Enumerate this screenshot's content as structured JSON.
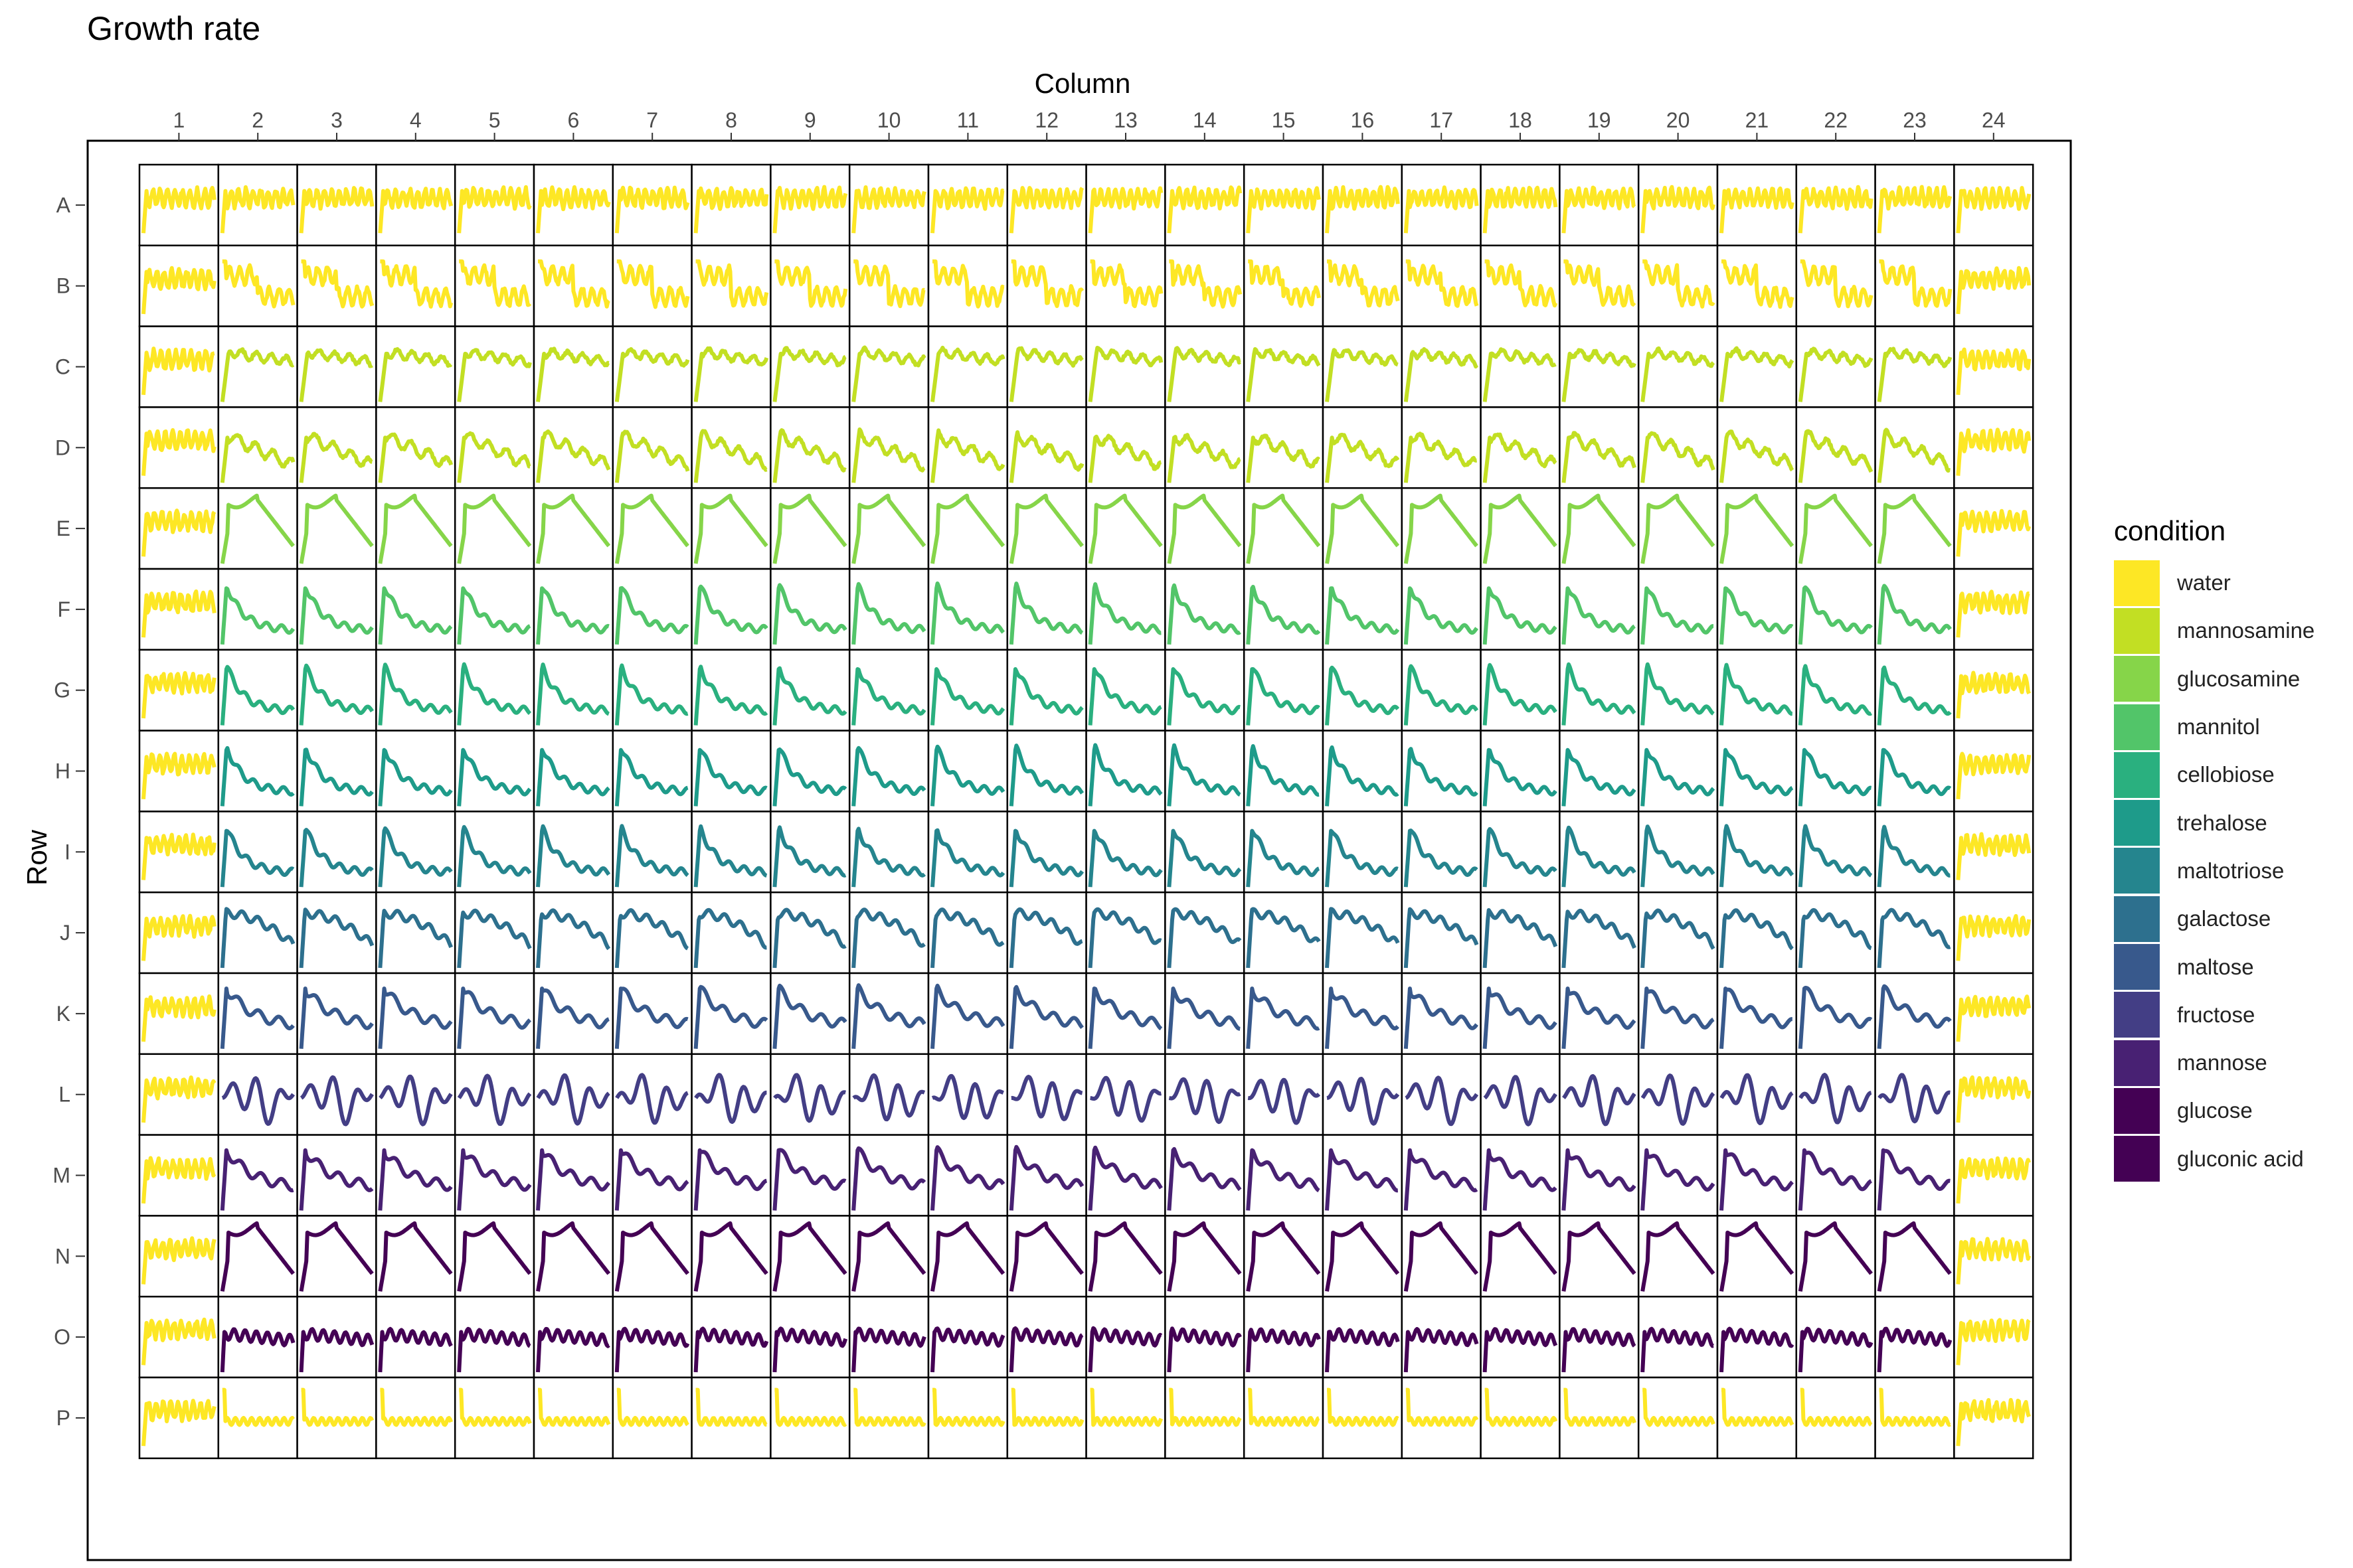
{
  "chart_data": {
    "type": "line",
    "title": "Growth rate",
    "xlabel": "Column",
    "ylabel": "Row",
    "columns": [
      "1",
      "2",
      "3",
      "4",
      "5",
      "6",
      "7",
      "8",
      "9",
      "10",
      "11",
      "12",
      "13",
      "14",
      "15",
      "16",
      "17",
      "18",
      "19",
      "20",
      "21",
      "22",
      "23",
      "24"
    ],
    "rows": [
      "A",
      "B",
      "C",
      "D",
      "E",
      "F",
      "G",
      "H",
      "I",
      "J",
      "K",
      "L",
      "M",
      "N",
      "O",
      "P"
    ],
    "legend": {
      "title": "condition",
      "placement": "right",
      "items": [
        {
          "label": "water",
          "color": "#FDE725"
        },
        {
          "label": "mannosamine",
          "color": "#C2DF23"
        },
        {
          "label": "glucosamine",
          "color": "#86D549"
        },
        {
          "label": "mannitol",
          "color": "#52C569"
        },
        {
          "label": "cellobiose",
          "color": "#2AB07F"
        },
        {
          "label": "trehalose",
          "color": "#1E9B8A"
        },
        {
          "label": "maltotriose",
          "color": "#25858E"
        },
        {
          "label": "galactose",
          "color": "#2D708E"
        },
        {
          "label": "maltose",
          "color": "#38598C"
        },
        {
          "label": "fructose",
          "color": "#433E85"
        },
        {
          "label": "mannose",
          "color": "#482173"
        },
        {
          "label": "glucose",
          "color": "#440154"
        },
        {
          "label": "gluconic acid",
          "color": "#440154"
        }
      ]
    },
    "row_conditions": [
      "water",
      "water",
      "mannosamine",
      "mannosamine",
      "glucosamine",
      "mannitol",
      "cellobiose",
      "trehalose",
      "maltotriose",
      "galactose",
      "maltose",
      "fructose",
      "mannose",
      "glucose",
      "gluconic acid",
      "water"
    ],
    "edge_column_condition": "water",
    "row_shapes": [
      "noisy-flat",
      "noisy-step",
      "rise-plateau",
      "rise-decline",
      "peak-plateau",
      "peak-decay",
      "peak-decay",
      "peak-decay",
      "peak-decay",
      "plateau-decline",
      "peak-decline",
      "oscillating-peaks",
      "peak-decline",
      "peak-plateau",
      "spike-plateau",
      "spike-flat"
    ],
    "grid": false
  }
}
